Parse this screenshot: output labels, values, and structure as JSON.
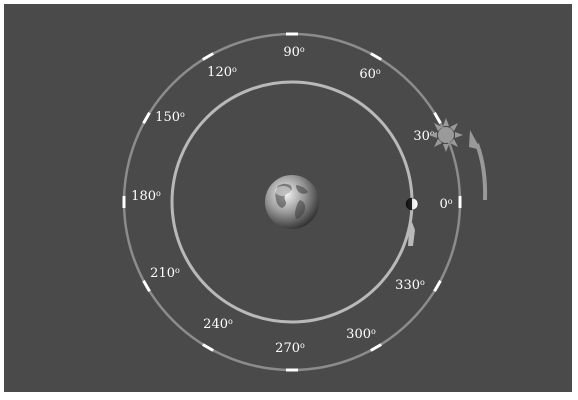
{
  "angle_labels": [
    {
      "value": "0",
      "symbol": "o"
    },
    {
      "value": "30",
      "symbol": "o"
    },
    {
      "value": "60",
      "symbol": "o"
    },
    {
      "value": "90",
      "symbol": "o"
    },
    {
      "value": "120",
      "symbol": "o"
    },
    {
      "value": "150",
      "symbol": "o"
    },
    {
      "value": "180",
      "symbol": "o"
    },
    {
      "value": "210",
      "symbol": "o"
    },
    {
      "value": "240",
      "symbol": "o"
    },
    {
      "value": "270",
      "symbol": "o"
    },
    {
      "value": "300",
      "symbol": "o"
    },
    {
      "value": "330",
      "symbol": "o"
    }
  ],
  "tick_angles_deg": [
    0,
    30,
    60,
    90,
    120,
    150,
    180,
    210,
    240,
    270,
    300,
    330
  ],
  "bodies": {
    "earth": "earth",
    "moon": "moon",
    "sun": "sun"
  },
  "moon_angle_deg": 0,
  "sun_angle_deg": 30,
  "colors": {
    "background": "#4a4a4a",
    "frame": "#ffffff",
    "outer_ring": "#8c8c8c",
    "inner_ring": "#b9b9b9",
    "tick": "#ffffff",
    "label": "#ffffff",
    "arrow": "#999999",
    "sun": "#9a9a9a"
  }
}
